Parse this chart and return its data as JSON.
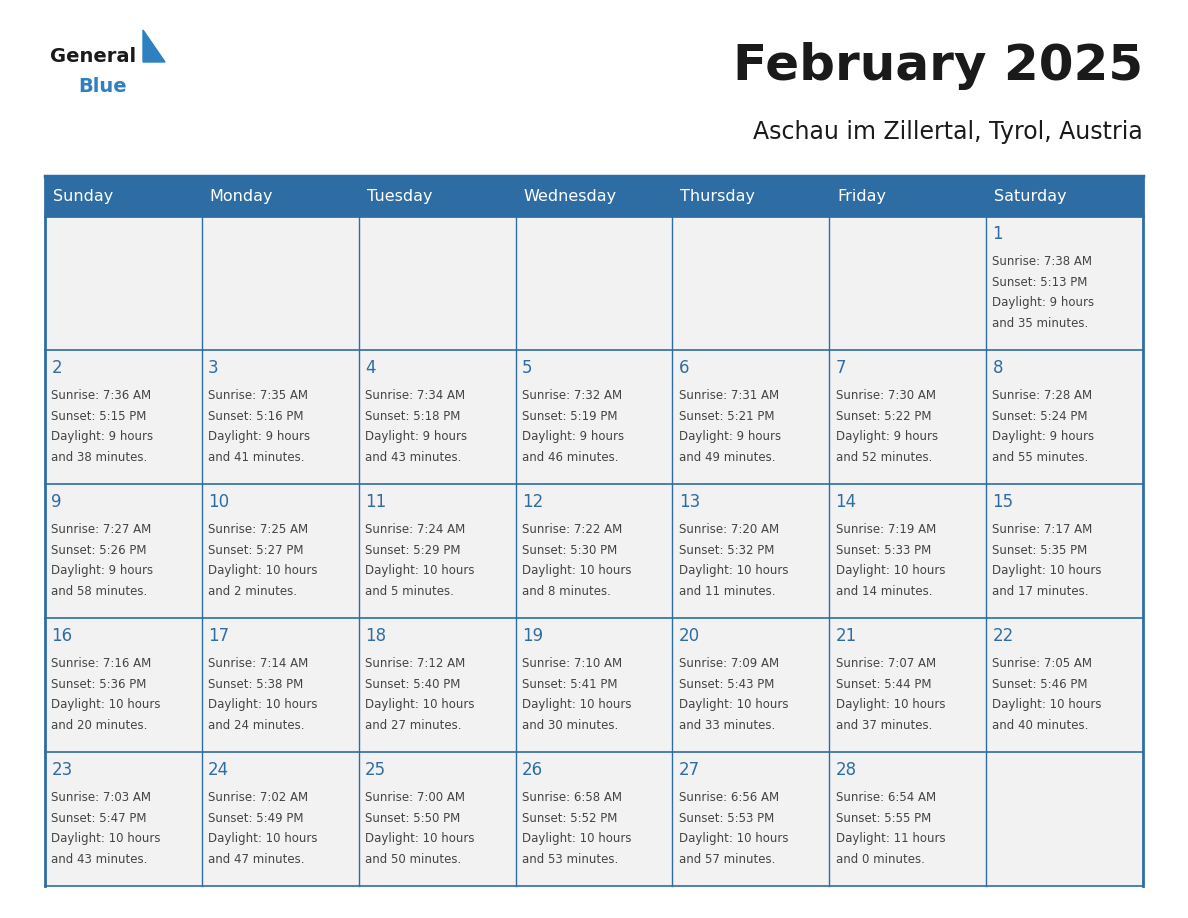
{
  "title": "February 2025",
  "subtitle": "Aschau im Zillertal, Tyrol, Austria",
  "header_bg": "#2E6DA4",
  "header_text": "#FFFFFF",
  "cell_bg": "#F2F2F2",
  "border_color": "#2E6DA4",
  "day_names": [
    "Sunday",
    "Monday",
    "Tuesday",
    "Wednesday",
    "Thursday",
    "Friday",
    "Saturday"
  ],
  "logo_general_color": "#1a1a1a",
  "logo_blue_color": "#2E80C0",
  "title_color": "#1a1a1a",
  "subtitle_color": "#1a1a1a",
  "day_number_color": "#2E6DA4",
  "cell_text_color": "#444444",
  "calendar": [
    [
      null,
      null,
      null,
      null,
      null,
      null,
      {
        "day": 1,
        "sunrise": "7:38 AM",
        "sunset": "5:13 PM",
        "daylight_line1": "Daylight: 9 hours",
        "daylight_line2": "and 35 minutes."
      }
    ],
    [
      {
        "day": 2,
        "sunrise": "7:36 AM",
        "sunset": "5:15 PM",
        "daylight_line1": "Daylight: 9 hours",
        "daylight_line2": "and 38 minutes."
      },
      {
        "day": 3,
        "sunrise": "7:35 AM",
        "sunset": "5:16 PM",
        "daylight_line1": "Daylight: 9 hours",
        "daylight_line2": "and 41 minutes."
      },
      {
        "day": 4,
        "sunrise": "7:34 AM",
        "sunset": "5:18 PM",
        "daylight_line1": "Daylight: 9 hours",
        "daylight_line2": "and 43 minutes."
      },
      {
        "day": 5,
        "sunrise": "7:32 AM",
        "sunset": "5:19 PM",
        "daylight_line1": "Daylight: 9 hours",
        "daylight_line2": "and 46 minutes."
      },
      {
        "day": 6,
        "sunrise": "7:31 AM",
        "sunset": "5:21 PM",
        "daylight_line1": "Daylight: 9 hours",
        "daylight_line2": "and 49 minutes."
      },
      {
        "day": 7,
        "sunrise": "7:30 AM",
        "sunset": "5:22 PM",
        "daylight_line1": "Daylight: 9 hours",
        "daylight_line2": "and 52 minutes."
      },
      {
        "day": 8,
        "sunrise": "7:28 AM",
        "sunset": "5:24 PM",
        "daylight_line1": "Daylight: 9 hours",
        "daylight_line2": "and 55 minutes."
      }
    ],
    [
      {
        "day": 9,
        "sunrise": "7:27 AM",
        "sunset": "5:26 PM",
        "daylight_line1": "Daylight: 9 hours",
        "daylight_line2": "and 58 minutes."
      },
      {
        "day": 10,
        "sunrise": "7:25 AM",
        "sunset": "5:27 PM",
        "daylight_line1": "Daylight: 10 hours",
        "daylight_line2": "and 2 minutes."
      },
      {
        "day": 11,
        "sunrise": "7:24 AM",
        "sunset": "5:29 PM",
        "daylight_line1": "Daylight: 10 hours",
        "daylight_line2": "and 5 minutes."
      },
      {
        "day": 12,
        "sunrise": "7:22 AM",
        "sunset": "5:30 PM",
        "daylight_line1": "Daylight: 10 hours",
        "daylight_line2": "and 8 minutes."
      },
      {
        "day": 13,
        "sunrise": "7:20 AM",
        "sunset": "5:32 PM",
        "daylight_line1": "Daylight: 10 hours",
        "daylight_line2": "and 11 minutes."
      },
      {
        "day": 14,
        "sunrise": "7:19 AM",
        "sunset": "5:33 PM",
        "daylight_line1": "Daylight: 10 hours",
        "daylight_line2": "and 14 minutes."
      },
      {
        "day": 15,
        "sunrise": "7:17 AM",
        "sunset": "5:35 PM",
        "daylight_line1": "Daylight: 10 hours",
        "daylight_line2": "and 17 minutes."
      }
    ],
    [
      {
        "day": 16,
        "sunrise": "7:16 AM",
        "sunset": "5:36 PM",
        "daylight_line1": "Daylight: 10 hours",
        "daylight_line2": "and 20 minutes."
      },
      {
        "day": 17,
        "sunrise": "7:14 AM",
        "sunset": "5:38 PM",
        "daylight_line1": "Daylight: 10 hours",
        "daylight_line2": "and 24 minutes."
      },
      {
        "day": 18,
        "sunrise": "7:12 AM",
        "sunset": "5:40 PM",
        "daylight_line1": "Daylight: 10 hours",
        "daylight_line2": "and 27 minutes."
      },
      {
        "day": 19,
        "sunrise": "7:10 AM",
        "sunset": "5:41 PM",
        "daylight_line1": "Daylight: 10 hours",
        "daylight_line2": "and 30 minutes."
      },
      {
        "day": 20,
        "sunrise": "7:09 AM",
        "sunset": "5:43 PM",
        "daylight_line1": "Daylight: 10 hours",
        "daylight_line2": "and 33 minutes."
      },
      {
        "day": 21,
        "sunrise": "7:07 AM",
        "sunset": "5:44 PM",
        "daylight_line1": "Daylight: 10 hours",
        "daylight_line2": "and 37 minutes."
      },
      {
        "day": 22,
        "sunrise": "7:05 AM",
        "sunset": "5:46 PM",
        "daylight_line1": "Daylight: 10 hours",
        "daylight_line2": "and 40 minutes."
      }
    ],
    [
      {
        "day": 23,
        "sunrise": "7:03 AM",
        "sunset": "5:47 PM",
        "daylight_line1": "Daylight: 10 hours",
        "daylight_line2": "and 43 minutes."
      },
      {
        "day": 24,
        "sunrise": "7:02 AM",
        "sunset": "5:49 PM",
        "daylight_line1": "Daylight: 10 hours",
        "daylight_line2": "and 47 minutes."
      },
      {
        "day": 25,
        "sunrise": "7:00 AM",
        "sunset": "5:50 PM",
        "daylight_line1": "Daylight: 10 hours",
        "daylight_line2": "and 50 minutes."
      },
      {
        "day": 26,
        "sunrise": "6:58 AM",
        "sunset": "5:52 PM",
        "daylight_line1": "Daylight: 10 hours",
        "daylight_line2": "and 53 minutes."
      },
      {
        "day": 27,
        "sunrise": "6:56 AM",
        "sunset": "5:53 PM",
        "daylight_line1": "Daylight: 10 hours",
        "daylight_line2": "and 57 minutes."
      },
      {
        "day": 28,
        "sunrise": "6:54 AM",
        "sunset": "5:55 PM",
        "daylight_line1": "Daylight: 11 hours",
        "daylight_line2": "and 0 minutes."
      },
      null
    ]
  ],
  "num_weeks": 5,
  "num_cols": 7,
  "title_fontsize": 36,
  "subtitle_fontsize": 17,
  "header_fontsize": 11.5,
  "day_num_fontsize": 12,
  "cell_text_fontsize": 8.5
}
